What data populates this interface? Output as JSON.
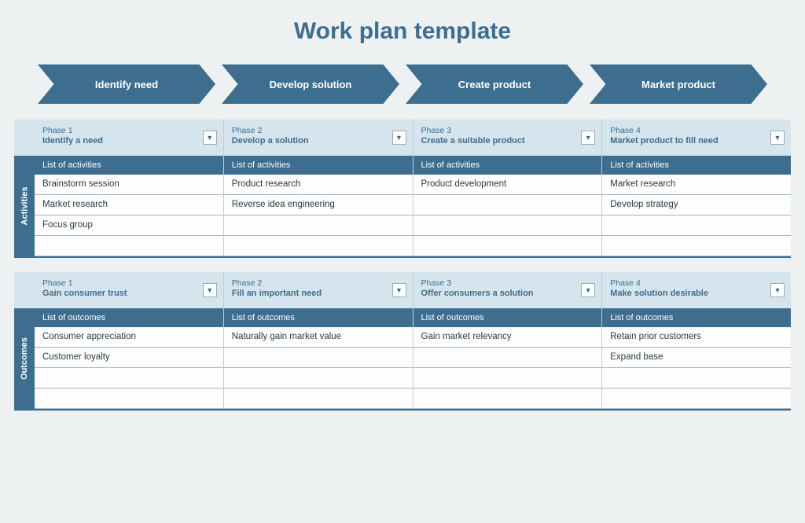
{
  "title": "Work plan template",
  "colors": {
    "accent": "#3d6e8f",
    "light": "#d6e4ed",
    "bg": "#eef1f2",
    "border": "#a4b4bf"
  },
  "chevrons": [
    {
      "label": "Identify need"
    },
    {
      "label": "Develop solution"
    },
    {
      "label": "Create product"
    },
    {
      "label": "Market product"
    }
  ],
  "sections": [
    {
      "side": "Activities",
      "subhead": "List of activities",
      "rows": 4,
      "cols": [
        {
          "phase": "Phase 1",
          "title": "Identify a need",
          "items": [
            "Brainstorm session",
            "Market research",
            "Focus group",
            ""
          ]
        },
        {
          "phase": "Phase 2",
          "title": "Develop a solution",
          "items": [
            "Product research",
            "Reverse idea engineering",
            "",
            ""
          ]
        },
        {
          "phase": "Phase 3",
          "title": "Create a suitable product",
          "items": [
            "Product development",
            "",
            "",
            ""
          ]
        },
        {
          "phase": "Phase 4",
          "title": "Market product to fill need",
          "items": [
            "Market research",
            "Develop strategy",
            "",
            ""
          ]
        }
      ]
    },
    {
      "side": "Outcomes",
      "subhead": "List of outcomes",
      "rows": 4,
      "cols": [
        {
          "phase": "Phase 1",
          "title": "Gain consumer trust",
          "items": [
            "Consumer appreciation",
            "Customer loyalty",
            "",
            ""
          ]
        },
        {
          "phase": "Phase 2",
          "title": "Fill an important need",
          "items": [
            "Naturally gain market value",
            "",
            "",
            ""
          ]
        },
        {
          "phase": "Phase 3",
          "title": "Offer consumers a solution",
          "items": [
            "Gain market relevancy",
            "",
            "",
            ""
          ]
        },
        {
          "phase": "Phase 4",
          "title": "Make solution desirable",
          "items": [
            "Retain prior customers",
            "Expand base",
            "",
            ""
          ]
        }
      ]
    }
  ]
}
